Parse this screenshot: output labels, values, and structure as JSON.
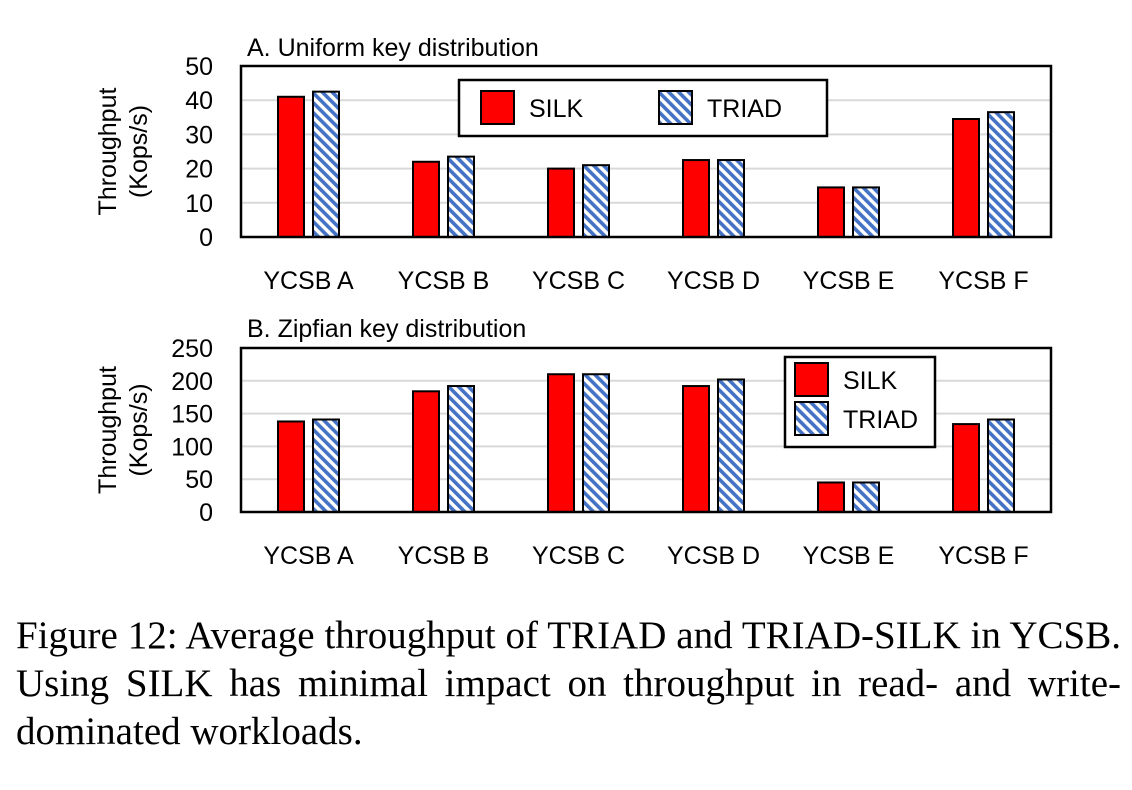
{
  "chart_data": [
    {
      "type": "bar",
      "title": "A. Uniform key distribution",
      "ylabel": [
        "Throughput",
        "(Kops/s)"
      ],
      "xlabel": "",
      "categories": [
        "YCSB A",
        "YCSB B",
        "YCSB C",
        "YCSB D",
        "YCSB E",
        "YCSB F"
      ],
      "ylim": [
        0,
        50
      ],
      "yticks": [
        0,
        10,
        20,
        30,
        40,
        50
      ],
      "grid": true,
      "legend_position": "top-center",
      "series": [
        {
          "name": "SILK",
          "values": [
            41,
            22,
            20,
            22.5,
            14.5,
            34.5
          ],
          "color": "#ff0000",
          "pattern": "solid"
        },
        {
          "name": "TRIAD",
          "values": [
            42.5,
            23.5,
            21,
            22.5,
            14.5,
            36.5
          ],
          "color": "#4472c4",
          "pattern": "diagonal-hatch"
        }
      ]
    },
    {
      "type": "bar",
      "title": "B. Zipfian key distribution",
      "ylabel": [
        "Throughput",
        "(Kops/s)"
      ],
      "xlabel": "",
      "categories": [
        "YCSB A",
        "YCSB B",
        "YCSB C",
        "YCSB D",
        "YCSB E",
        "YCSB F"
      ],
      "ylim": [
        0,
        250
      ],
      "yticks": [
        0,
        50,
        100,
        150,
        200,
        250
      ],
      "grid": true,
      "legend_position": "top-right",
      "series": [
        {
          "name": "SILK",
          "values": [
            138,
            184,
            210,
            192,
            45,
            134
          ],
          "color": "#ff0000",
          "pattern": "solid"
        },
        {
          "name": "TRIAD",
          "values": [
            141,
            192,
            210,
            202,
            45,
            141
          ],
          "color": "#4472c4",
          "pattern": "diagonal-hatch"
        }
      ]
    }
  ],
  "caption": {
    "text": "Figure 12: Average throughput of TRIAD and TRIAD-SILK in YCSB. Using SILK has minimal impact on throughput in read- and write- dominated workloads."
  }
}
